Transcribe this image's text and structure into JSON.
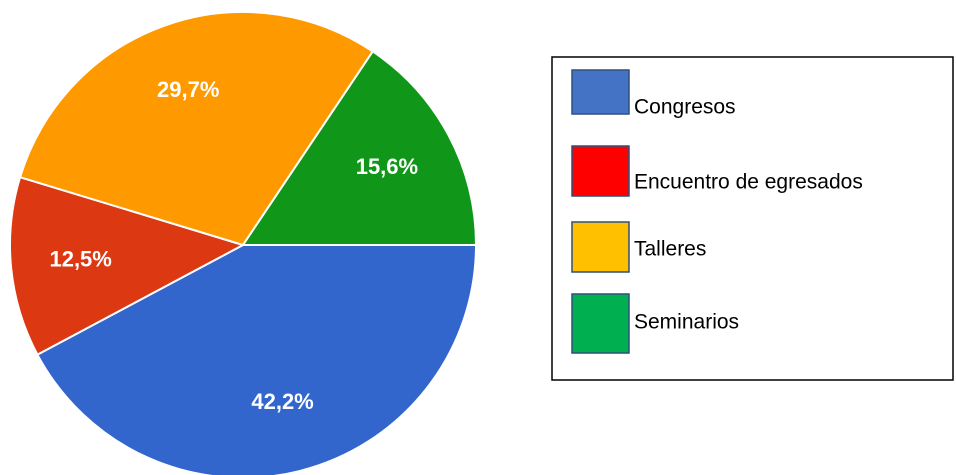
{
  "chart_data": {
    "type": "pie",
    "categories": [
      "Congresos",
      "Encuentro de egresados",
      "Talleres",
      "Seminarios"
    ],
    "values": [
      42.2,
      12.5,
      29.7,
      15.6
    ],
    "value_labels": [
      "42,2%",
      "12,5%",
      "29,7%",
      "15,6%"
    ],
    "colors": [
      "#3366cc",
      "#dc3912",
      "#ff9900",
      "#109618"
    ],
    "legend_colors": [
      "#4472c4",
      "#ff0000",
      "#ffc000",
      "#00b050"
    ]
  }
}
